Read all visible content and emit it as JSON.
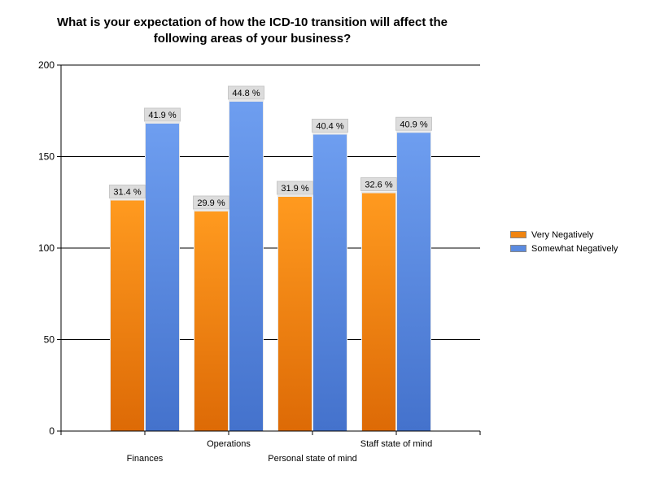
{
  "chart_data": {
    "type": "bar",
    "title_lines": [
      "What is your expectation of how the ICD-10 transition will affect the",
      "following areas of your business?"
    ],
    "categories": [
      "Finances",
      "Operations",
      "Personal state of mind",
      "Staff state of mind"
    ],
    "series": [
      {
        "name": "Very Negatively",
        "values": [
          126,
          120,
          128,
          130
        ],
        "labels": [
          "31.4 %",
          "29.9 %",
          "31.9 %",
          "32.6 %"
        ],
        "color_top": "#ff9a1f",
        "color_bottom": "#dd6a06"
      },
      {
        "name": "Somewhat Negatively",
        "values": [
          168,
          180,
          162,
          163
        ],
        "labels": [
          "41.9 %",
          "44.8 %",
          "40.4 %",
          "40.9 %"
        ],
        "color_top": "#6e9ef0",
        "color_bottom": "#4472cc"
      }
    ],
    "ylim": [
      0,
      200
    ],
    "yticks": [
      "0",
      "50",
      "100",
      "150",
      "200"
    ],
    "grid": true,
    "legend_position": "right"
  }
}
